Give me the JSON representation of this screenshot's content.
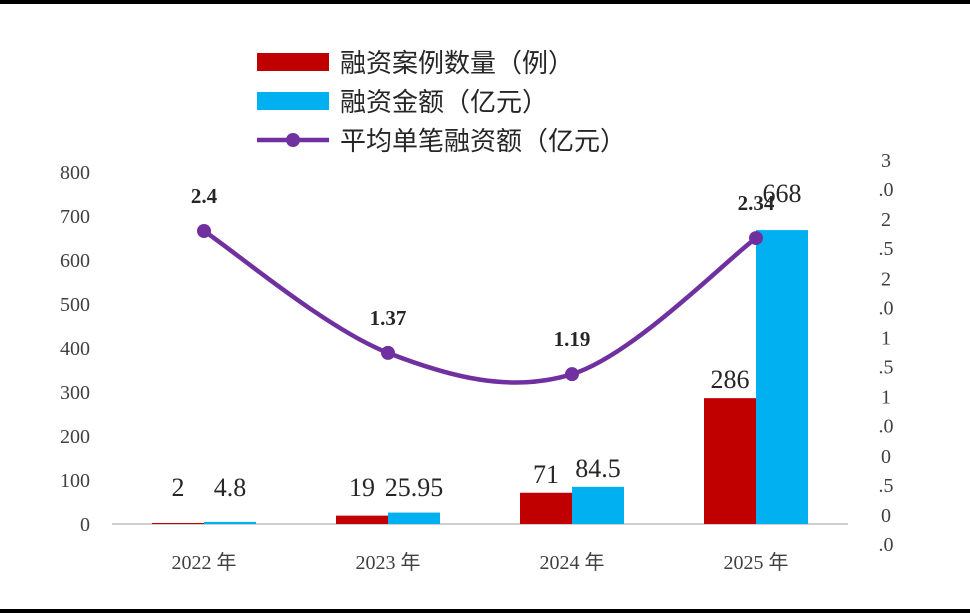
{
  "chart_data": {
    "type": "bar",
    "categories": [
      "2022 年",
      "2023 年",
      "2024 年",
      "2025 年"
    ],
    "series": [
      {
        "name": "融资案例数量（例）",
        "type": "bar",
        "axis": "left",
        "color": "#c00000",
        "values": [
          2,
          19,
          71,
          286
        ],
        "labels": [
          "2",
          "19",
          "71",
          "286"
        ]
      },
      {
        "name": "融资金额（亿元）",
        "type": "bar",
        "axis": "left",
        "color": "#00b0f0",
        "values": [
          4.8,
          25.95,
          84.5,
          668
        ],
        "labels": [
          "4.8",
          "25.95",
          "84.5",
          "668"
        ]
      },
      {
        "name": "平均单笔融资额（亿元）",
        "type": "line",
        "axis": "right",
        "color": "#7030a0",
        "values": [
          2.4,
          1.37,
          1.19,
          2.34
        ],
        "labels": [
          "2.4",
          "1.37",
          "1.19",
          "2.34"
        ]
      }
    ],
    "y_left": {
      "min": 0,
      "max": 800,
      "ticks": [
        "0",
        "100",
        "200",
        "300",
        "400",
        "500",
        "600",
        "700",
        "800"
      ]
    },
    "y_right": {
      "min": 0,
      "max": 3,
      "ticks": [
        "0\n.0",
        "0\n.5",
        "1\n.0",
        "1\n.5",
        "2\n.0",
        "2\n.5",
        "3\n.0"
      ]
    },
    "legend_position": "top-center",
    "grid": false
  }
}
